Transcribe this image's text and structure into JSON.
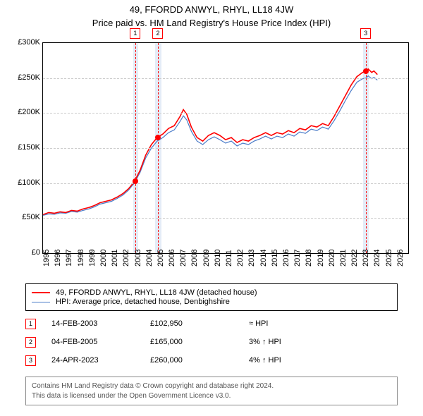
{
  "title": "49, FFORDD ANWYL, RHYL, LL18 4JW",
  "subtitle": "Price paid vs. HM Land Registry's House Price Index (HPI)",
  "chart": {
    "type": "line",
    "x_min": 1995,
    "x_max": 2027,
    "y_min": 0,
    "y_max": 300000,
    "y_ticks": [
      0,
      50000,
      100000,
      150000,
      200000,
      250000,
      300000
    ],
    "y_tick_labels": [
      "£0",
      "£50K",
      "£100K",
      "£150K",
      "£200K",
      "£250K",
      "£300K"
    ],
    "x_ticks": [
      1995,
      1996,
      1997,
      1998,
      1999,
      2000,
      2001,
      2002,
      2003,
      2004,
      2005,
      2006,
      2007,
      2008,
      2009,
      2010,
      2011,
      2012,
      2013,
      2014,
      2015,
      2016,
      2017,
      2018,
      2019,
      2020,
      2021,
      2022,
      2023,
      2024,
      2025,
      2026
    ],
    "grid_color": "#cccccc",
    "background": "#ffffff",
    "border_color": "#000000",
    "band_color": "#e4ecf7",
    "bands": [
      {
        "from": 2002.9,
        "to": 2003.35
      },
      {
        "from": 2004.85,
        "to": 2005.35
      },
      {
        "from": 2023.05,
        "to": 2023.55
      }
    ],
    "vlines": [
      {
        "x": 2003.12
      },
      {
        "x": 2005.1
      },
      {
        "x": 2023.31
      }
    ],
    "markers_top": [
      {
        "n": "1",
        "x": 2003.12
      },
      {
        "n": "2",
        "x": 2005.1
      },
      {
        "n": "3",
        "x": 2023.31
      }
    ],
    "sale_points": [
      {
        "x": 2003.12,
        "y": 102950,
        "color": "#ff0000"
      },
      {
        "x": 2005.1,
        "y": 165000,
        "color": "#ff0000"
      },
      {
        "x": 2023.31,
        "y": 260000,
        "color": "#ff0000"
      }
    ],
    "series": [
      {
        "name": "property",
        "color": "#ff0000",
        "width": 1.6,
        "points": [
          [
            1995,
            55000
          ],
          [
            1995.5,
            58000
          ],
          [
            1996,
            57000
          ],
          [
            1996.5,
            59000
          ],
          [
            1997,
            58000
          ],
          [
            1997.5,
            61000
          ],
          [
            1998,
            60000
          ],
          [
            1998.5,
            63000
          ],
          [
            1999,
            65000
          ],
          [
            1999.5,
            68000
          ],
          [
            2000,
            72000
          ],
          [
            2000.5,
            74000
          ],
          [
            2001,
            76000
          ],
          [
            2001.5,
            80000
          ],
          [
            2002,
            85000
          ],
          [
            2002.5,
            92000
          ],
          [
            2003,
            102000
          ],
          [
            2003.5,
            118000
          ],
          [
            2004,
            140000
          ],
          [
            2004.5,
            155000
          ],
          [
            2005,
            165000
          ],
          [
            2005.5,
            170000
          ],
          [
            2006,
            178000
          ],
          [
            2006.5,
            182000
          ],
          [
            2007,
            195000
          ],
          [
            2007.3,
            205000
          ],
          [
            2007.6,
            198000
          ],
          [
            2008,
            180000
          ],
          [
            2008.5,
            165000
          ],
          [
            2009,
            160000
          ],
          [
            2009.5,
            168000
          ],
          [
            2010,
            172000
          ],
          [
            2010.5,
            168000
          ],
          [
            2011,
            162000
          ],
          [
            2011.5,
            165000
          ],
          [
            2012,
            158000
          ],
          [
            2012.5,
            162000
          ],
          [
            2013,
            160000
          ],
          [
            2013.5,
            165000
          ],
          [
            2014,
            168000
          ],
          [
            2014.5,
            172000
          ],
          [
            2015,
            168000
          ],
          [
            2015.5,
            172000
          ],
          [
            2016,
            170000
          ],
          [
            2016.5,
            175000
          ],
          [
            2017,
            172000
          ],
          [
            2017.5,
            178000
          ],
          [
            2018,
            176000
          ],
          [
            2018.5,
            182000
          ],
          [
            2019,
            180000
          ],
          [
            2019.5,
            185000
          ],
          [
            2020,
            182000
          ],
          [
            2020.5,
            195000
          ],
          [
            2021,
            210000
          ],
          [
            2021.5,
            225000
          ],
          [
            2022,
            240000
          ],
          [
            2022.5,
            252000
          ],
          [
            2023,
            258000
          ],
          [
            2023.3,
            260000
          ],
          [
            2023.5,
            263000
          ],
          [
            2023.8,
            258000
          ],
          [
            2024,
            260000
          ],
          [
            2024.3,
            255000
          ]
        ]
      },
      {
        "name": "hpi",
        "color": "#4a7bc8",
        "width": 1.2,
        "points": [
          [
            1995,
            54000
          ],
          [
            1995.5,
            56000
          ],
          [
            1996,
            55500
          ],
          [
            1996.5,
            57500
          ],
          [
            1997,
            57000
          ],
          [
            1997.5,
            59500
          ],
          [
            1998,
            58500
          ],
          [
            1998.5,
            61000
          ],
          [
            1999,
            63000
          ],
          [
            1999.5,
            66000
          ],
          [
            2000,
            70000
          ],
          [
            2000.5,
            72000
          ],
          [
            2001,
            74000
          ],
          [
            2001.5,
            78000
          ],
          [
            2002,
            83000
          ],
          [
            2002.5,
            90000
          ],
          [
            2003,
            100000
          ],
          [
            2003.5,
            115000
          ],
          [
            2004,
            136000
          ],
          [
            2004.5,
            150000
          ],
          [
            2005,
            160000
          ],
          [
            2005.5,
            165000
          ],
          [
            2006,
            172000
          ],
          [
            2006.5,
            176000
          ],
          [
            2007,
            188000
          ],
          [
            2007.3,
            196000
          ],
          [
            2007.6,
            190000
          ],
          [
            2008,
            174000
          ],
          [
            2008.5,
            160000
          ],
          [
            2009,
            155000
          ],
          [
            2009.5,
            162000
          ],
          [
            2010,
            166000
          ],
          [
            2010.5,
            162000
          ],
          [
            2011,
            157000
          ],
          [
            2011.5,
            160000
          ],
          [
            2012,
            153000
          ],
          [
            2012.5,
            157000
          ],
          [
            2013,
            155000
          ],
          [
            2013.5,
            160000
          ],
          [
            2014,
            163000
          ],
          [
            2014.5,
            167000
          ],
          [
            2015,
            163000
          ],
          [
            2015.5,
            167000
          ],
          [
            2016,
            165000
          ],
          [
            2016.5,
            170000
          ],
          [
            2017,
            167000
          ],
          [
            2017.5,
            173000
          ],
          [
            2018,
            171000
          ],
          [
            2018.5,
            177000
          ],
          [
            2019,
            175000
          ],
          [
            2019.5,
            180000
          ],
          [
            2020,
            177000
          ],
          [
            2020.5,
            189000
          ],
          [
            2021,
            203000
          ],
          [
            2021.5,
            218000
          ],
          [
            2022,
            232000
          ],
          [
            2022.5,
            244000
          ],
          [
            2023,
            249000
          ],
          [
            2023.3,
            250000
          ],
          [
            2023.5,
            253000
          ],
          [
            2023.8,
            249000
          ],
          [
            2024,
            251000
          ],
          [
            2024.3,
            247000
          ]
        ]
      }
    ]
  },
  "legend": {
    "items": [
      {
        "label": "49, FFORDD ANWYL, RHYL, LL18 4JW (detached house)",
        "color": "#ff0000",
        "width": 2
      },
      {
        "label": "HPI: Average price, detached house, Denbighshire",
        "color": "#4a7bc8",
        "width": 1
      }
    ]
  },
  "sales": [
    {
      "n": "1",
      "date": "14-FEB-2003",
      "price": "£102,950",
      "pct": "≈ HPI"
    },
    {
      "n": "2",
      "date": "04-FEB-2005",
      "price": "£165,000",
      "pct": "3% ↑ HPI"
    },
    {
      "n": "3",
      "date": "24-APR-2023",
      "price": "£260,000",
      "pct": "4% ↑ HPI"
    }
  ],
  "attribution": {
    "line1": "Contains HM Land Registry data © Crown copyright and database right 2024.",
    "line2": "This data is licensed under the Open Government Licence v3.0."
  }
}
